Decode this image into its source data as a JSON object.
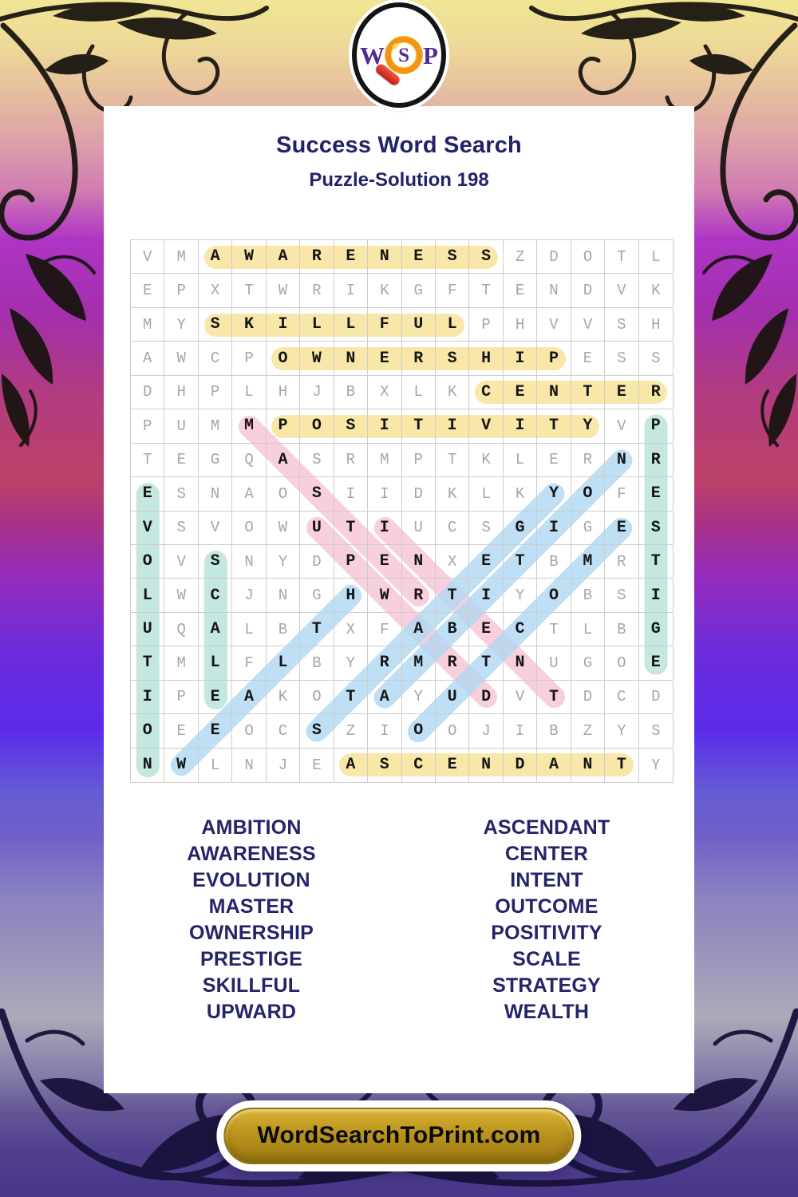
{
  "logo": {
    "letters": [
      "W",
      "S",
      "P"
    ]
  },
  "header": {
    "title": "Success Word Search",
    "subtitle": "Puzzle-Solution 198"
  },
  "grid": {
    "size": 16,
    "rows": [
      "VMAWARENESSZDOTL",
      "EPXTWRIKGFTENDVK",
      "MYSKILLFULPHVVSH",
      "AWCPOWNERSHIPESS",
      "DHPLHJBXLKCENTER",
      "PUMMPOSITIVITYVP",
      "TEGQASRMPTKLERNR",
      "ESNAOSIIDKLKYOFE",
      "VSVOWUTIUCSGIGES",
      "OVSNYDPENXETBMRT",
      "LWCJNGHWRTIYOBSI",
      "UQALBTXFABECTLBG",
      "TMLFLBYRMRTNUGOE",
      "IPEAKOTAYUDVTDCD",
      "OEEOCSZIOOJIBZYS",
      "NWLNJEASCENDANTY"
    ]
  },
  "solutions": [
    {
      "word": "AWARENESS",
      "row1": 1,
      "col1": 3,
      "row2": 1,
      "col2": 11,
      "style": "yellow"
    },
    {
      "word": "SKILLFUL",
      "row1": 3,
      "col1": 3,
      "row2": 3,
      "col2": 10,
      "style": "yellow"
    },
    {
      "word": "OWNERSHIP",
      "row1": 4,
      "col1": 5,
      "row2": 4,
      "col2": 13,
      "style": "yellow"
    },
    {
      "word": "CENTER",
      "row1": 5,
      "col1": 11,
      "row2": 5,
      "col2": 16,
      "style": "yellow"
    },
    {
      "word": "POSITIVITY",
      "row1": 6,
      "col1": 5,
      "row2": 6,
      "col2": 14,
      "style": "yellow"
    },
    {
      "word": "ASCENDANT",
      "row1": 16,
      "col1": 7,
      "row2": 16,
      "col2": 15,
      "style": "yellow"
    },
    {
      "word": "EVOLUTION",
      "row1": 8,
      "col1": 1,
      "row2": 16,
      "col2": 1,
      "style": "teal"
    },
    {
      "word": "SCALE",
      "row1": 10,
      "col1": 3,
      "row2": 14,
      "col2": 3,
      "style": "teal"
    },
    {
      "word": "PRESTIGE",
      "row1": 6,
      "col1": 16,
      "row2": 13,
      "col2": 16,
      "style": "teal"
    },
    {
      "word": "MASTER",
      "row1": 6,
      "col1": 4,
      "row2": 11,
      "col2": 9,
      "style": "pink"
    },
    {
      "word": "UPWARD",
      "row1": 9,
      "col1": 6,
      "row2": 14,
      "col2": 11,
      "style": "pink"
    },
    {
      "word": "INTENT",
      "row1": 9,
      "col1": 8,
      "row2": 14,
      "col2": 13,
      "style": "pink"
    },
    {
      "word": "WEALTH",
      "row1": 16,
      "col1": 2,
      "row2": 11,
      "col2": 7,
      "style": "blue"
    },
    {
      "word": "STRATEGY",
      "row1": 15,
      "col1": 6,
      "row2": 8,
      "col2": 13,
      "style": "blue"
    },
    {
      "word": "OUTCOME",
      "row1": 15,
      "col1": 9,
      "row2": 9,
      "col2": 15,
      "style": "blue"
    },
    {
      "word": "AMBITION",
      "row1": 14,
      "col1": 8,
      "row2": 7,
      "col2": 15,
      "style": "blue"
    }
  ],
  "word_list": {
    "left": [
      "AMBITION",
      "AWARENESS",
      "EVOLUTION",
      "MASTER",
      "OWNERSHIP",
      "PRESTIGE",
      "SKILLFUL",
      "UPWARD"
    ],
    "right": [
      "ASCENDANT",
      "CENTER",
      "INTENT",
      "OUTCOME",
      "POSITIVITY",
      "SCALE",
      "STRATEGY",
      "WEALTH"
    ]
  },
  "footer": {
    "site_label": "WordSearchToPrint.com"
  },
  "colors": {
    "title_navy": "#22226B",
    "word_navy": "#23246A",
    "highlight_yellow": "rgba(248,229,163,0.92)",
    "highlight_teal": "rgba(191,229,221,0.92)",
    "highlight_pink": "rgba(247,196,213,0.82)",
    "highlight_blue": "rgba(177,216,243,0.82)",
    "logo_purple": "#4F2B93",
    "logo_orange": "#F2960F",
    "logo_red": "#C21D12",
    "button_gold": "#BB941E"
  }
}
